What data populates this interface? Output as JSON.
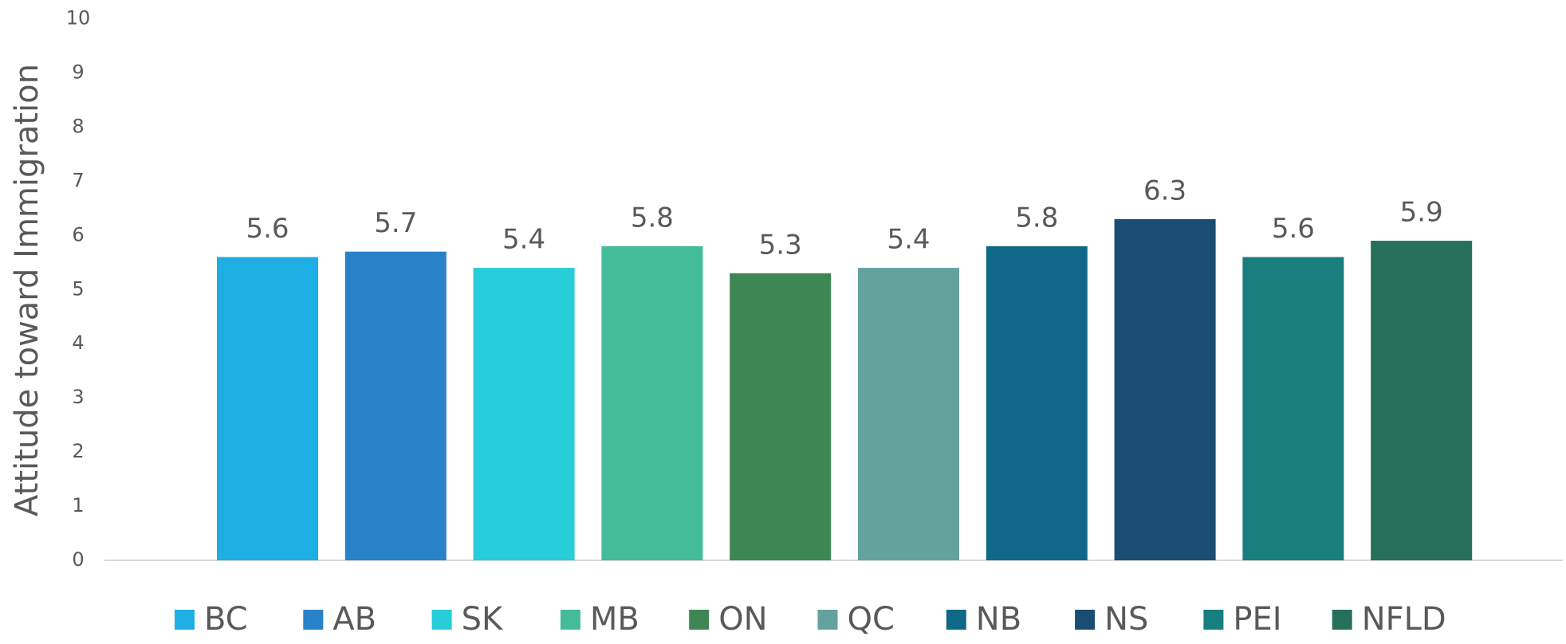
{
  "chart_data": {
    "type": "bar",
    "y_label": "Attitude toward Immigration",
    "ylim": [
      0,
      10
    ],
    "yticks": [
      0,
      1,
      2,
      3,
      4,
      5,
      6,
      7,
      8,
      9,
      10
    ],
    "grid": false,
    "legend": "bottom",
    "series": [
      {
        "name": "BC",
        "color": "#1FAEE3",
        "values": [
          5.6
        ]
      },
      {
        "name": "AB",
        "color": "#2882C8",
        "values": [
          5.7
        ]
      },
      {
        "name": "SK",
        "color": "#27CDD8",
        "values": [
          5.4
        ]
      },
      {
        "name": "MB",
        "color": "#44BB99",
        "values": [
          5.8
        ]
      },
      {
        "name": "ON",
        "color": "#3C8753",
        "values": [
          5.3
        ]
      },
      {
        "name": "QC",
        "color": "#63A39E",
        "values": [
          5.4
        ]
      },
      {
        "name": "NB",
        "color": "#106888",
        "values": [
          5.8
        ]
      },
      {
        "name": "NS",
        "color": "#1A4D72",
        "values": [
          6.3
        ]
      },
      {
        "name": "PEI",
        "color": "#197E7E",
        "values": [
          5.6
        ]
      },
      {
        "name": "NFLD",
        "color": "#266F5B",
        "values": [
          5.9
        ]
      }
    ]
  }
}
